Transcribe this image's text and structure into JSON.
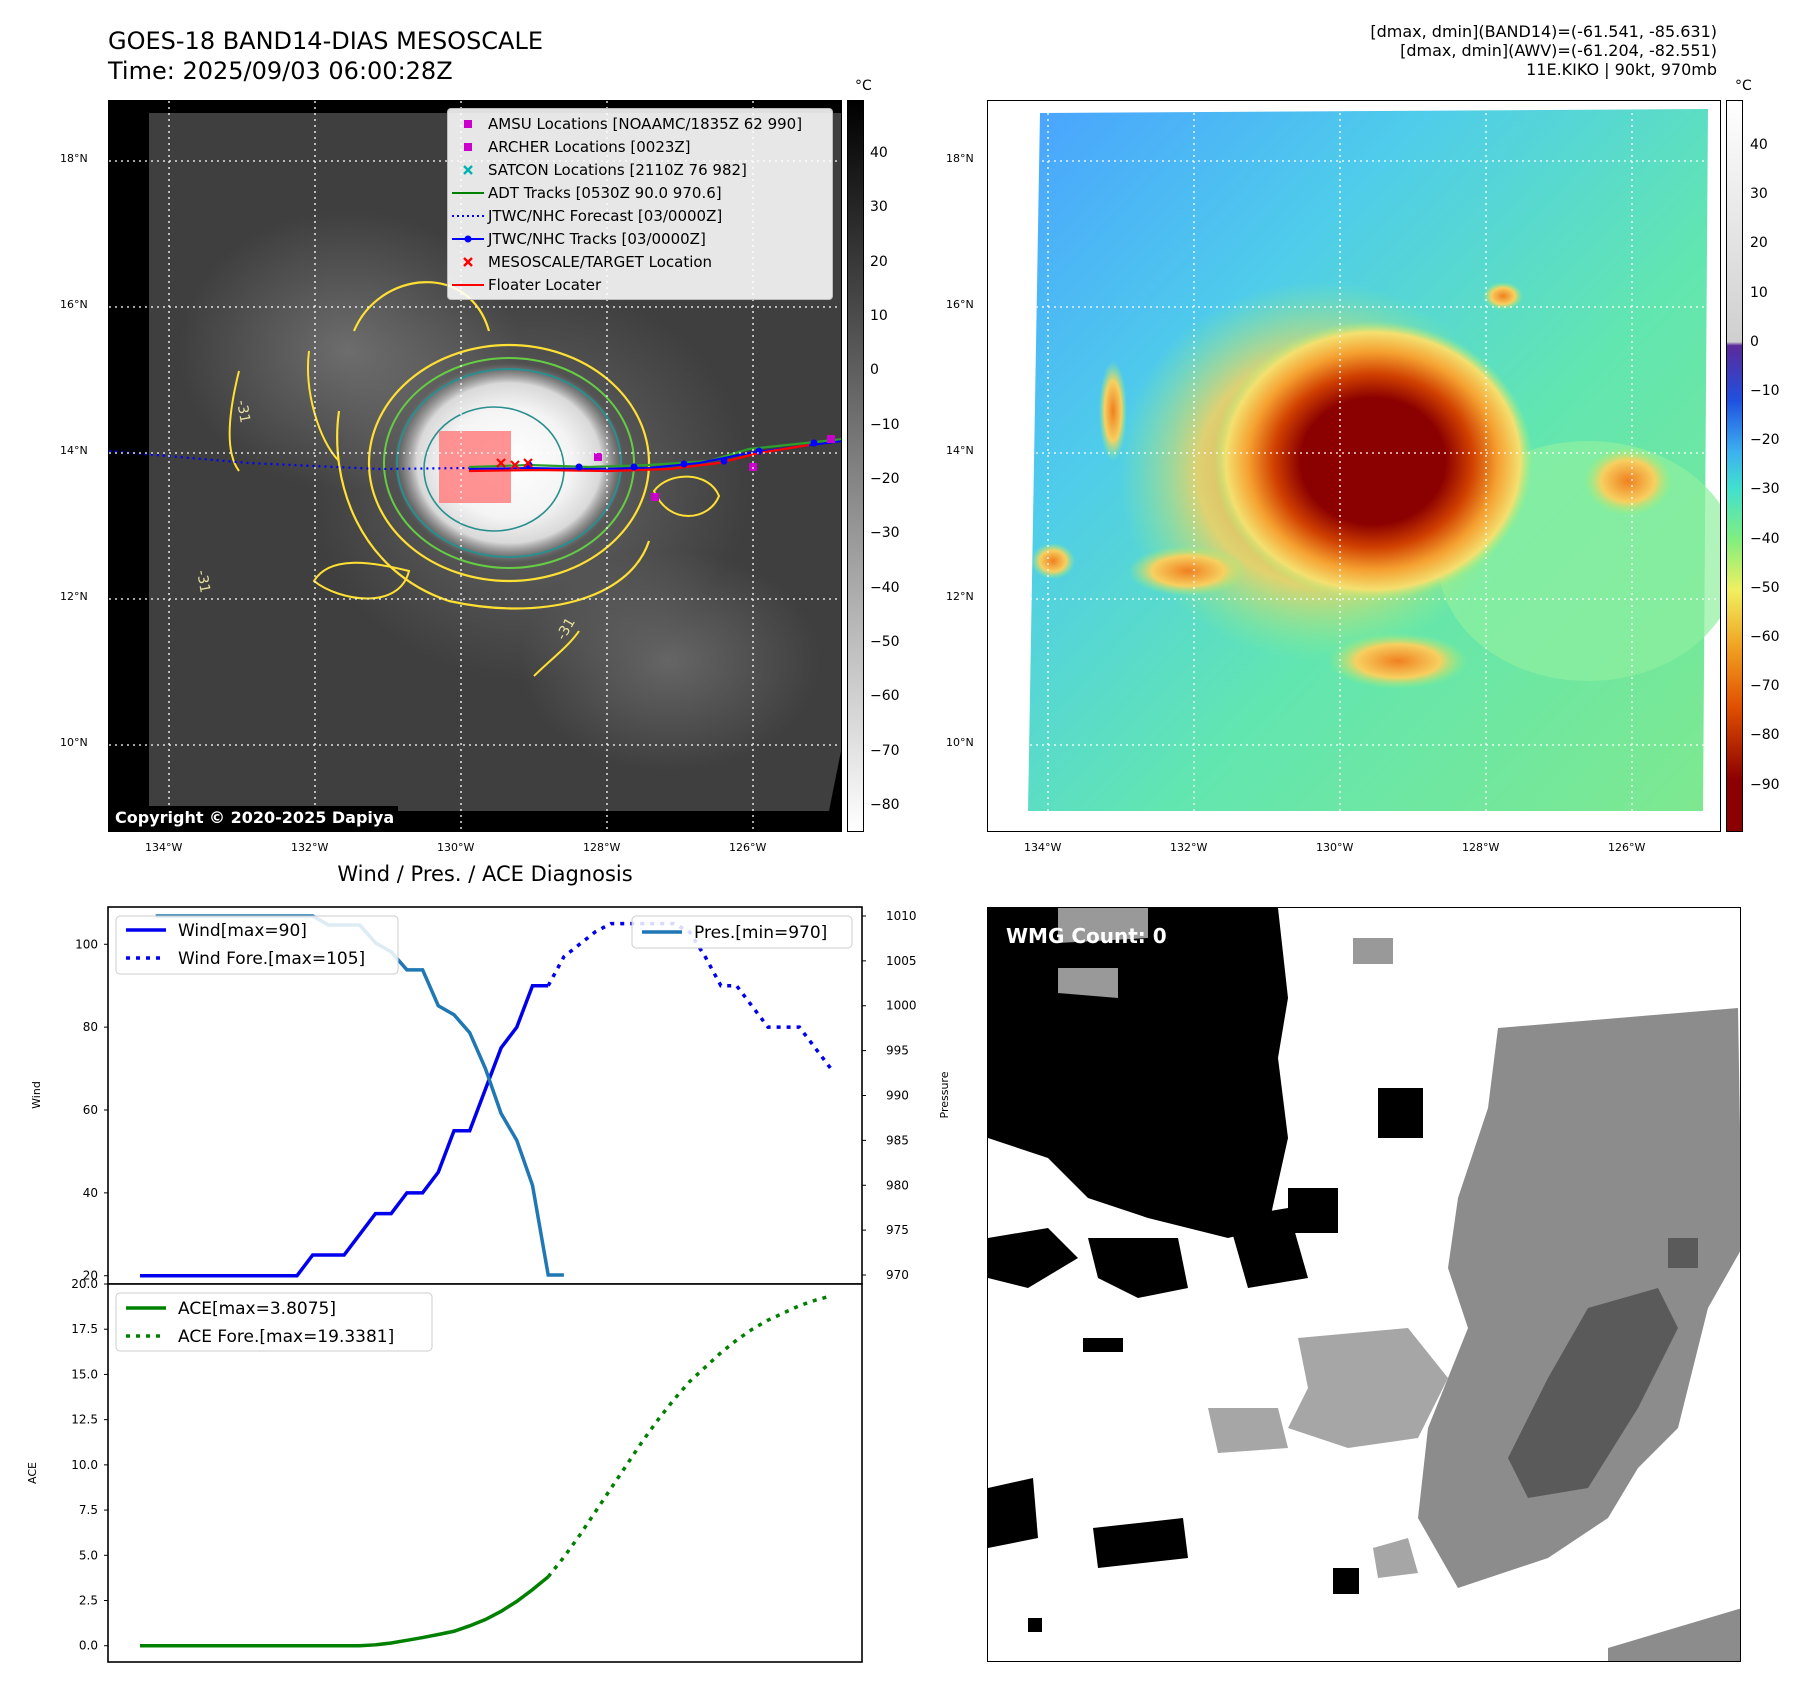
{
  "header": {
    "title_line1": "GOES-18 BAND14-DIAS MESOSCALE",
    "title_line2": "Time: 2025/09/03 06:00:28Z",
    "info_line1": "[dmax, dmin](BAND14)=(-61.541, -85.631)",
    "info_line2": "[dmax, dmin](AWV)=(-61.204, -82.551)",
    "info_line3": "11E.KIKO | 90kt, 970mb"
  },
  "maps": {
    "lat_labels": [
      "18°N",
      "16°N",
      "14°N",
      "12°N",
      "10°N"
    ],
    "lon_labels": [
      "134°W",
      "132°W",
      "130°W",
      "128°W",
      "126°W"
    ],
    "contour_label": "-31",
    "copyright": "Copyright © 2020-2025 Dapiya",
    "left_colorbar": {
      "unit": "°C",
      "ticks": [
        "40",
        "30",
        "20",
        "10",
        "0",
        "−10",
        "−20",
        "−30",
        "−40",
        "−50",
        "−60",
        "−70",
        "−80"
      ]
    },
    "right_colorbar": {
      "unit": "°C",
      "ticks": [
        "40",
        "30",
        "20",
        "10",
        "0",
        "−10",
        "−20",
        "−30",
        "−40",
        "−50",
        "−60",
        "−70",
        "−80",
        "−90"
      ]
    },
    "legend": [
      {
        "label": "AMSU Locations [NOAAMC/1835Z 62 990]",
        "symbol": "square",
        "color": "#cc00cc"
      },
      {
        "label": "ARCHER Locations [0023Z]",
        "symbol": "square",
        "color": "#cc00cc"
      },
      {
        "label": "SATCON Locations [2110Z 76 982]",
        "symbol": "x",
        "color": "#00b3b3"
      },
      {
        "label": "ADT Tracks [0530Z 90.0 970.6]",
        "symbol": "line",
        "color": "#008000"
      },
      {
        "label": "JTWC/NHC Forecast [03/0000Z]",
        "symbol": "dotted",
        "color": "#0000ff"
      },
      {
        "label": "JTWC/NHC Tracks [03/0000Z]",
        "symbol": "line-dot",
        "color": "#0000ff"
      },
      {
        "label": "MESOSCALE/TARGET Location",
        "symbol": "x",
        "color": "#ff0000"
      },
      {
        "label": "Floater Locater",
        "symbol": "line",
        "color": "#ff0000"
      }
    ]
  },
  "wmg": {
    "label": "WMG Count: 0"
  },
  "chart_data": [
    {
      "type": "line",
      "title": "Wind / Pres. / ACE Diagnosis",
      "ylabel": "Wind",
      "y2label": "Pressure",
      "ylim": [
        18,
        109
      ],
      "y2lim": [
        969,
        1011
      ],
      "yticks": [
        20,
        40,
        60,
        80,
        100
      ],
      "y2ticks": [
        970,
        975,
        980,
        985,
        990,
        995,
        1000,
        1005,
        1010
      ],
      "series": [
        {
          "name": "Wind[max=90]",
          "style": "solid",
          "color": "#0000ee",
          "axis": "left",
          "x": [
            0,
            1,
            2,
            3,
            4,
            5,
            6,
            7,
            8,
            9,
            10,
            11,
            12,
            13,
            14,
            15,
            16,
            17,
            18,
            19,
            20,
            21,
            22,
            23,
            24,
            25,
            26
          ],
          "values": [
            20,
            20,
            20,
            20,
            20,
            20,
            20,
            20,
            20,
            20,
            20,
            25,
            25,
            25,
            30,
            35,
            35,
            40,
            40,
            45,
            55,
            55,
            65,
            75,
            80,
            90,
            90
          ]
        },
        {
          "name": "Wind Fore.[max=105]",
          "style": "dotted",
          "color": "#0000ee",
          "axis": "left",
          "x": [
            26,
            27,
            28,
            29,
            30,
            31,
            32,
            33,
            34,
            35,
            36,
            37,
            38,
            39,
            40,
            41,
            42,
            43,
            44
          ],
          "values": [
            90,
            97,
            100,
            103,
            105,
            105,
            105,
            105,
            105,
            103,
            97,
            90,
            90,
            85,
            80,
            80,
            80,
            75,
            70
          ]
        },
        {
          "name": "Pres.[min=970]",
          "style": "solid",
          "color": "#1f77b4",
          "axis": "right",
          "x": [
            1,
            2,
            3,
            4,
            5,
            6,
            7,
            8,
            9,
            10,
            11,
            12,
            13,
            14,
            15,
            16,
            17,
            18,
            19,
            20,
            21,
            22,
            23,
            24,
            25,
            26,
            27
          ],
          "values": [
            1010,
            1010,
            1010,
            1010,
            1010,
            1010,
            1010,
            1010,
            1010,
            1010,
            1010,
            1009,
            1009,
            1009,
            1007,
            1006,
            1004,
            1004,
            1000,
            999,
            997,
            993,
            988,
            985,
            980,
            970,
            970
          ]
        }
      ]
    },
    {
      "type": "line",
      "ylabel": "ACE",
      "ylim": [
        -0.9,
        20
      ],
      "yticks": [
        "0.0",
        "2.5",
        "5.0",
        "7.5",
        "10.0",
        "12.5",
        "15.0",
        "17.5",
        "20.0"
      ],
      "series": [
        {
          "name": "ACE[max=3.8075]",
          "style": "solid",
          "color": "#008000",
          "x": [
            0,
            1,
            2,
            3,
            4,
            5,
            6,
            7,
            8,
            9,
            10,
            11,
            12,
            13,
            14,
            15,
            16,
            17,
            18,
            19,
            20,
            21,
            22,
            23,
            24,
            25,
            26
          ],
          "values": [
            0,
            0,
            0,
            0,
            0,
            0,
            0,
            0,
            0,
            0,
            0,
            0,
            0,
            0,
            0,
            0.05,
            0.15,
            0.3,
            0.45,
            0.62,
            0.8,
            1.1,
            1.45,
            1.9,
            2.45,
            3.1,
            3.81
          ]
        },
        {
          "name": "ACE Fore.[max=19.3381]",
          "style": "dotted",
          "color": "#008000",
          "x": [
            26,
            27,
            28,
            29,
            30,
            31,
            32,
            33,
            34,
            35,
            36,
            37,
            38,
            39,
            40,
            41,
            42,
            43,
            44
          ],
          "values": [
            3.81,
            4.9,
            6.1,
            7.4,
            8.7,
            10.0,
            11.3,
            12.5,
            13.6,
            14.6,
            15.4,
            16.2,
            16.9,
            17.5,
            18.0,
            18.4,
            18.8,
            19.1,
            19.34
          ]
        }
      ]
    }
  ]
}
